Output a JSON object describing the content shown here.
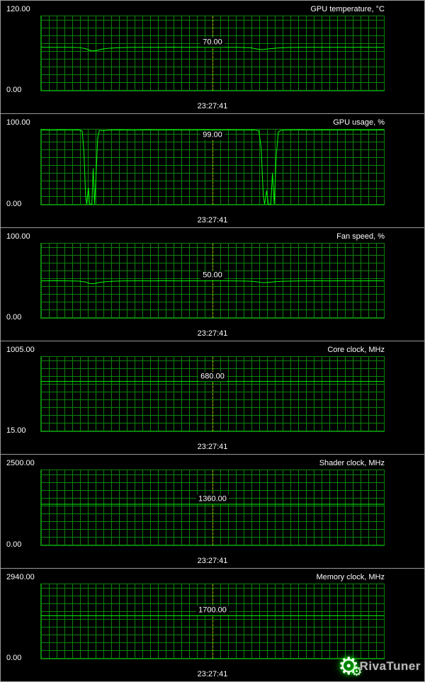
{
  "window": {
    "background": "#000000"
  },
  "colors": {
    "plot_line": "#00ff00",
    "grid": "#0c830c",
    "time_cursor": "#b9b900",
    "text": "#ffffff",
    "panel_border": "#9a9a9a"
  },
  "branding": {
    "logo_text": "RivaTuner"
  },
  "icons": {
    "gear": "⚙"
  },
  "chart_data": [
    {
      "type": "line",
      "title": "GPU temperature, °C",
      "ylim": [
        0,
        120
      ],
      "ymax_label": "120.00",
      "ymin_label": "0.00",
      "current_value": 70,
      "current_label": "70.00",
      "timestamp": "23:27:41",
      "legend_position": "none",
      "grid": true,
      "points": [
        [
          0,
          70.2
        ],
        [
          3,
          70
        ],
        [
          6,
          70.1
        ],
        [
          9,
          70
        ],
        [
          11,
          69.8
        ],
        [
          13,
          68
        ],
        [
          14,
          65.5
        ],
        [
          15,
          64.3
        ],
        [
          16,
          64.8
        ],
        [
          17,
          66
        ],
        [
          18,
          67.5
        ],
        [
          20,
          68.8
        ],
        [
          23,
          69.6
        ],
        [
          26,
          70
        ],
        [
          30,
          70.2
        ],
        [
          34,
          70
        ],
        [
          38,
          70.3
        ],
        [
          42,
          70
        ],
        [
          46,
          70.1
        ],
        [
          50,
          70
        ],
        [
          54,
          70.2
        ],
        [
          58,
          70
        ],
        [
          61,
          69.5
        ],
        [
          63,
          67.5
        ],
        [
          64,
          66.3
        ],
        [
          65,
          66.8
        ],
        [
          67,
          68
        ],
        [
          69,
          69
        ],
        [
          72,
          69.8
        ],
        [
          75,
          70
        ],
        [
          79,
          70.2
        ],
        [
          83,
          70
        ],
        [
          87,
          70.1
        ],
        [
          91,
          70
        ],
        [
          95,
          70.2
        ],
        [
          100,
          70
        ]
      ]
    },
    {
      "type": "line",
      "title": "GPU usage, %",
      "ylim": [
        0,
        100
      ],
      "ymax_label": "100.00",
      "ymin_label": "0.00",
      "current_value": 99,
      "current_label": "99.00",
      "timestamp": "23:27:41",
      "legend_position": "none",
      "grid": true,
      "points": [
        [
          0,
          99.5
        ],
        [
          3,
          99.2
        ],
        [
          6,
          99.5
        ],
        [
          9,
          99.3
        ],
        [
          11,
          99.5
        ],
        [
          12,
          98
        ],
        [
          12.5,
          70
        ],
        [
          13,
          10
        ],
        [
          13.3,
          0
        ],
        [
          13.8,
          22
        ],
        [
          14.2,
          0
        ],
        [
          14.8,
          0
        ],
        [
          15.2,
          48
        ],
        [
          15.6,
          0
        ],
        [
          16,
          35
        ],
        [
          16.5,
          88
        ],
        [
          17,
          99
        ],
        [
          18,
          98.5
        ],
        [
          20,
          99.3
        ],
        [
          23,
          99.5
        ],
        [
          27,
          99.2
        ],
        [
          31,
          99.5
        ],
        [
          35,
          99.4
        ],
        [
          39,
          99.5
        ],
        [
          43,
          99.3
        ],
        [
          47,
          99.5
        ],
        [
          51,
          99.4
        ],
        [
          55,
          99.5
        ],
        [
          59,
          99.3
        ],
        [
          62,
          99.5
        ],
        [
          63.5,
          98.5
        ],
        [
          64.2,
          75
        ],
        [
          64.8,
          12
        ],
        [
          65.2,
          0
        ],
        [
          65.8,
          18
        ],
        [
          66.3,
          0
        ],
        [
          67,
          0
        ],
        [
          67.5,
          42
        ],
        [
          68,
          0
        ],
        [
          68.6,
          65
        ],
        [
          69.2,
          97
        ],
        [
          70,
          99
        ],
        [
          72,
          99.4
        ],
        [
          75,
          99.5
        ],
        [
          79,
          99.3
        ],
        [
          83,
          99.5
        ],
        [
          87,
          99.4
        ],
        [
          91,
          99.5
        ],
        [
          95,
          99.3
        ],
        [
          100,
          99.5
        ]
      ]
    },
    {
      "type": "line",
      "title": "Fan speed, %",
      "ylim": [
        0,
        100
      ],
      "ymax_label": "100.00",
      "ymin_label": "0.00",
      "current_value": 50,
      "current_label": "50.00",
      "timestamp": "23:27:41",
      "legend_position": "none",
      "grid": true,
      "points": [
        [
          0,
          50
        ],
        [
          4,
          50.3
        ],
        [
          8,
          50
        ],
        [
          11,
          49.8
        ],
        [
          13,
          48.5
        ],
        [
          14,
          46.8
        ],
        [
          15,
          46.2
        ],
        [
          16,
          46.8
        ],
        [
          17,
          48
        ],
        [
          19,
          49
        ],
        [
          21,
          49.6
        ],
        [
          24,
          50
        ],
        [
          28,
          50.2
        ],
        [
          32,
          50
        ],
        [
          36,
          50.3
        ],
        [
          40,
          50
        ],
        [
          44,
          50.1
        ],
        [
          48,
          50
        ],
        [
          52,
          50.2
        ],
        [
          56,
          50
        ],
        [
          60,
          49.8
        ],
        [
          62,
          49.3
        ],
        [
          64,
          48.2
        ],
        [
          65,
          47.6
        ],
        [
          66,
          48
        ],
        [
          68,
          48.8
        ],
        [
          70,
          49.4
        ],
        [
          73,
          49.8
        ],
        [
          76,
          50
        ],
        [
          80,
          50.2
        ],
        [
          84,
          50
        ],
        [
          88,
          50.1
        ],
        [
          92,
          50
        ],
        [
          96,
          50.2
        ],
        [
          100,
          50
        ]
      ]
    },
    {
      "type": "line",
      "title": "Core clock, MHz",
      "ylim": [
        15,
        1005
      ],
      "ymax_label": "1005.00",
      "ymin_label": "15.00",
      "current_value": 680,
      "current_label": "680.00",
      "timestamp": "23:27:41",
      "legend_position": "none",
      "grid": true,
      "points": [
        [
          0,
          680
        ],
        [
          100,
          680
        ]
      ]
    },
    {
      "type": "line",
      "title": "Shader clock, MHz",
      "ylim": [
        0,
        2500
      ],
      "ymax_label": "2500.00",
      "ymin_label": "0.00",
      "current_value": 1360,
      "current_label": "1360.00",
      "timestamp": "23:27:41",
      "legend_position": "none",
      "grid": true,
      "points": [
        [
          0,
          1360
        ],
        [
          100,
          1360
        ]
      ]
    },
    {
      "type": "line",
      "title": "Memory clock, MHz",
      "ylim": [
        0,
        2940
      ],
      "ymax_label": "2940.00",
      "ymin_label": "0.00",
      "current_value": 1700,
      "current_label": "1700.00",
      "timestamp": "23:27:41",
      "legend_position": "none",
      "grid": true,
      "points": [
        [
          0,
          1700
        ],
        [
          100,
          1700
        ]
      ]
    }
  ]
}
